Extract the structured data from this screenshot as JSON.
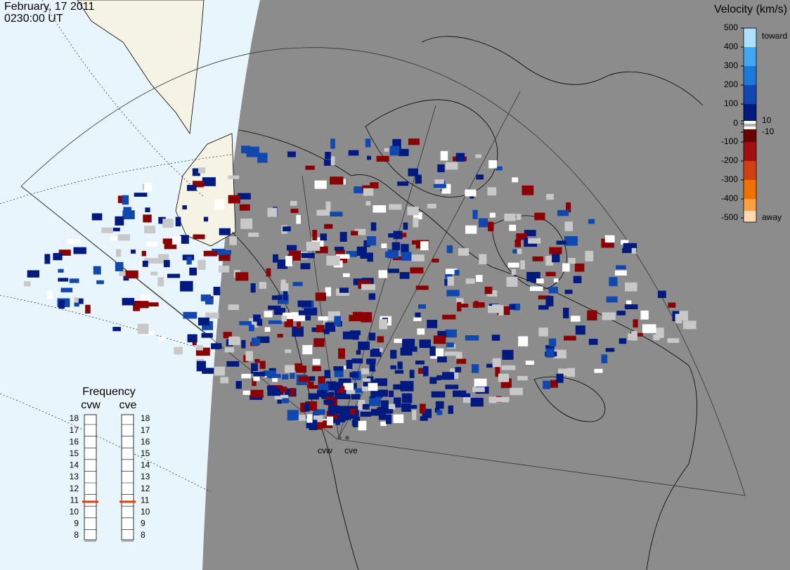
{
  "header": {
    "date": "February, 17 2011",
    "time": "0230:00 UT"
  },
  "colorbar": {
    "title": "Velocity (km/s)",
    "ticks": [
      500,
      400,
      300,
      200,
      100,
      10,
      0,
      -10,
      -100,
      -200,
      -300,
      -400,
      -500
    ],
    "top_label": "toward",
    "bottom_label": "away"
  },
  "stations": [
    "cvw",
    "cve"
  ],
  "frequency": {
    "title": "Frequency",
    "lim": [
      8,
      18
    ],
    "ticks": [
      18,
      17,
      16,
      15,
      14,
      13,
      12,
      11,
      10,
      9,
      8
    ],
    "radars": [
      {
        "name": "cvw",
        "value": 10.9
      },
      {
        "name": "cve",
        "value": 10.9
      }
    ]
  }
}
